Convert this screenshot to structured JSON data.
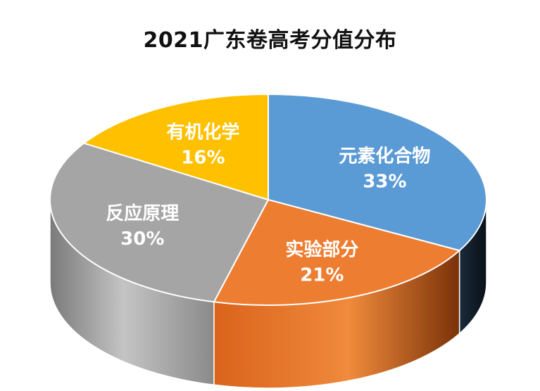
{
  "chart_data": {
    "type": "pie",
    "title": "2021广东卷高考分值分布",
    "categories": [
      "元素化合物",
      "实验部分",
      "反应原理",
      "有机化学"
    ],
    "values": [
      33,
      21,
      30,
      16
    ],
    "value_labels": [
      "33%",
      "21%",
      "30%",
      "16%"
    ],
    "colors": [
      "#5b9bd5",
      "#ed7d31",
      "#a5a5a5",
      "#ffc000"
    ],
    "style": "3d",
    "legend": "none"
  }
}
